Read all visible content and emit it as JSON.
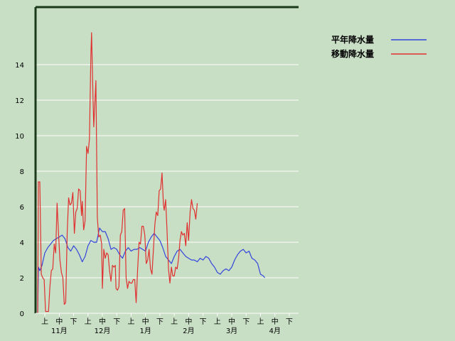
{
  "chart_data": {
    "type": "line",
    "title": "",
    "xlabel": "",
    "ylabel": "",
    "ylim": [
      0,
      16
    ],
    "grid": true,
    "legend_position": "top-right",
    "y_ticks": [
      "0",
      "2",
      "4",
      "6",
      "8",
      "10",
      "12",
      "14"
    ],
    "period_labels": [
      "上",
      "中",
      "下",
      "上",
      "中",
      "下",
      "上",
      "中",
      "下",
      "上",
      "中",
      "下",
      "上",
      "中",
      "下",
      "上",
      "中",
      "下"
    ],
    "month_labels": [
      "11月",
      "12月",
      "1月",
      "2月",
      "3月",
      "4月"
    ],
    "x_count": 18,
    "series": [
      {
        "name": "平年降水量",
        "color": "#3344dd",
        "values": [
          [
            0.0,
            0.0
          ],
          [
            0.05,
            2.6
          ],
          [
            0.15,
            2.4
          ],
          [
            0.3,
            2.7
          ],
          [
            0.5,
            3.4
          ],
          [
            0.7,
            3.7
          ],
          [
            0.9,
            3.9
          ],
          [
            1.1,
            4.1
          ],
          [
            1.3,
            4.2
          ],
          [
            1.5,
            4.3
          ],
          [
            1.7,
            4.4
          ],
          [
            1.9,
            4.2
          ],
          [
            2.1,
            3.7
          ],
          [
            2.3,
            3.5
          ],
          [
            2.5,
            3.8
          ],
          [
            2.7,
            3.6
          ],
          [
            2.9,
            3.3
          ],
          [
            3.1,
            2.9
          ],
          [
            3.3,
            3.2
          ],
          [
            3.5,
            3.8
          ],
          [
            3.7,
            4.1
          ],
          [
            3.9,
            4.0
          ],
          [
            4.1,
            4.0
          ],
          [
            4.3,
            4.8
          ],
          [
            4.5,
            4.6
          ],
          [
            4.7,
            4.6
          ],
          [
            4.9,
            4.2
          ],
          [
            5.1,
            3.6
          ],
          [
            5.3,
            3.7
          ],
          [
            5.5,
            3.6
          ],
          [
            5.7,
            3.3
          ],
          [
            5.9,
            3.1
          ],
          [
            6.1,
            3.5
          ],
          [
            6.3,
            3.7
          ],
          [
            6.5,
            3.5
          ],
          [
            6.7,
            3.6
          ],
          [
            6.9,
            3.6
          ],
          [
            7.1,
            3.7
          ],
          [
            7.3,
            3.6
          ],
          [
            7.5,
            3.5
          ],
          [
            7.7,
            4.0
          ],
          [
            7.9,
            4.3
          ],
          [
            8.1,
            4.5
          ],
          [
            8.3,
            4.3
          ],
          [
            8.5,
            4.1
          ],
          [
            8.7,
            3.7
          ],
          [
            8.9,
            3.2
          ],
          [
            9.1,
            3.0
          ],
          [
            9.3,
            2.8
          ],
          [
            9.5,
            3.2
          ],
          [
            9.7,
            3.5
          ],
          [
            9.9,
            3.6
          ],
          [
            10.1,
            3.4
          ],
          [
            10.3,
            3.2
          ],
          [
            10.5,
            3.1
          ],
          [
            10.7,
            3.0
          ],
          [
            10.9,
            3.0
          ],
          [
            11.1,
            2.9
          ],
          [
            11.3,
            3.1
          ],
          [
            11.5,
            3.0
          ],
          [
            11.7,
            3.2
          ],
          [
            11.9,
            3.1
          ],
          [
            12.1,
            2.8
          ],
          [
            12.3,
            2.6
          ],
          [
            12.5,
            2.3
          ],
          [
            12.7,
            2.2
          ],
          [
            12.9,
            2.4
          ],
          [
            13.1,
            2.5
          ],
          [
            13.3,
            2.4
          ],
          [
            13.5,
            2.6
          ],
          [
            13.7,
            3.0
          ],
          [
            13.9,
            3.3
          ],
          [
            14.1,
            3.5
          ],
          [
            14.3,
            3.6
          ],
          [
            14.5,
            3.4
          ],
          [
            14.7,
            3.5
          ],
          [
            14.9,
            3.1
          ],
          [
            15.1,
            3.0
          ],
          [
            15.3,
            2.8
          ],
          [
            15.5,
            2.2
          ],
          [
            15.7,
            2.1
          ],
          [
            15.8,
            2.0
          ]
        ]
      },
      {
        "name": "移動降水量",
        "color": "#e03030",
        "values": [
          [
            0.0,
            0.0
          ],
          [
            0.05,
            7.4
          ],
          [
            0.15,
            7.4
          ],
          [
            0.25,
            2.2
          ],
          [
            0.35,
            2.0
          ],
          [
            0.45,
            1.9
          ],
          [
            0.55,
            0.1
          ],
          [
            0.75,
            0.1
          ],
          [
            0.85,
            1.5
          ],
          [
            0.95,
            2.4
          ],
          [
            1.05,
            2.5
          ],
          [
            1.15,
            3.9
          ],
          [
            1.25,
            3.4
          ],
          [
            1.35,
            6.2
          ],
          [
            1.45,
            4.5
          ],
          [
            1.55,
            3.0
          ],
          [
            1.65,
            2.3
          ],
          [
            1.75,
            2.0
          ],
          [
            1.85,
            0.5
          ],
          [
            1.95,
            0.6
          ],
          [
            2.05,
            4.5
          ],
          [
            2.15,
            6.5
          ],
          [
            2.25,
            6.1
          ],
          [
            2.35,
            6.2
          ],
          [
            2.45,
            6.8
          ],
          [
            2.55,
            4.5
          ],
          [
            2.65,
            5.7
          ],
          [
            2.75,
            5.9
          ],
          [
            2.85,
            7.0
          ],
          [
            2.95,
            6.9
          ],
          [
            3.05,
            5.5
          ],
          [
            3.1,
            6.3
          ],
          [
            3.2,
            4.7
          ],
          [
            3.3,
            5.2
          ],
          [
            3.4,
            9.4
          ],
          [
            3.5,
            9.0
          ],
          [
            3.6,
            9.8
          ],
          [
            3.7,
            14.5
          ],
          [
            3.75,
            15.8
          ],
          [
            3.85,
            12.0
          ],
          [
            3.9,
            10.5
          ],
          [
            3.95,
            11.4
          ],
          [
            4.05,
            13.1
          ],
          [
            4.15,
            5.4
          ],
          [
            4.25,
            4.3
          ],
          [
            4.35,
            4.4
          ],
          [
            4.45,
            3.9
          ],
          [
            4.5,
            1.4
          ],
          [
            4.6,
            3.6
          ],
          [
            4.7,
            3.1
          ],
          [
            4.8,
            3.4
          ],
          [
            4.9,
            3.3
          ],
          [
            5.0,
            2.4
          ],
          [
            5.1,
            1.8
          ],
          [
            5.2,
            2.7
          ],
          [
            5.3,
            2.6
          ],
          [
            5.4,
            2.7
          ],
          [
            5.45,
            1.4
          ],
          [
            5.55,
            1.3
          ],
          [
            5.65,
            1.5
          ],
          [
            5.75,
            4.4
          ],
          [
            5.85,
            4.6
          ],
          [
            5.95,
            5.8
          ],
          [
            6.05,
            5.9
          ],
          [
            6.15,
            2.0
          ],
          [
            6.25,
            1.4
          ],
          [
            6.35,
            1.8
          ],
          [
            6.45,
            1.7
          ],
          [
            6.55,
            1.7
          ],
          [
            6.65,
            1.9
          ],
          [
            6.75,
            1.9
          ],
          [
            6.85,
            0.6
          ],
          [
            6.95,
            2.4
          ],
          [
            7.05,
            4.0
          ],
          [
            7.15,
            3.9
          ],
          [
            7.25,
            4.9
          ],
          [
            7.35,
            4.9
          ],
          [
            7.45,
            4.4
          ],
          [
            7.55,
            2.8
          ],
          [
            7.65,
            3.0
          ],
          [
            7.75,
            3.6
          ],
          [
            7.85,
            2.5
          ],
          [
            7.95,
            2.2
          ],
          [
            8.05,
            3.6
          ],
          [
            8.15,
            5.0
          ],
          [
            8.25,
            5.7
          ],
          [
            8.35,
            5.5
          ],
          [
            8.45,
            6.9
          ],
          [
            8.55,
            7.0
          ],
          [
            8.65,
            7.9
          ],
          [
            8.75,
            6.1
          ],
          [
            8.8,
            5.8
          ],
          [
            8.9,
            6.4
          ],
          [
            9.0,
            4.6
          ],
          [
            9.1,
            2.5
          ],
          [
            9.2,
            1.7
          ],
          [
            9.3,
            2.6
          ],
          [
            9.4,
            2.1
          ],
          [
            9.5,
            2.1
          ],
          [
            9.6,
            2.6
          ],
          [
            9.7,
            2.5
          ],
          [
            9.8,
            3.1
          ],
          [
            9.9,
            4.1
          ],
          [
            10.0,
            4.6
          ],
          [
            10.1,
            4.4
          ],
          [
            10.2,
            4.5
          ],
          [
            10.3,
            3.8
          ],
          [
            10.4,
            5.1
          ],
          [
            10.5,
            4.1
          ],
          [
            10.6,
            5.7
          ],
          [
            10.7,
            6.4
          ],
          [
            10.8,
            5.9
          ],
          [
            10.9,
            5.8
          ],
          [
            11.0,
            5.3
          ],
          [
            11.1,
            6.2
          ]
        ]
      }
    ]
  }
}
